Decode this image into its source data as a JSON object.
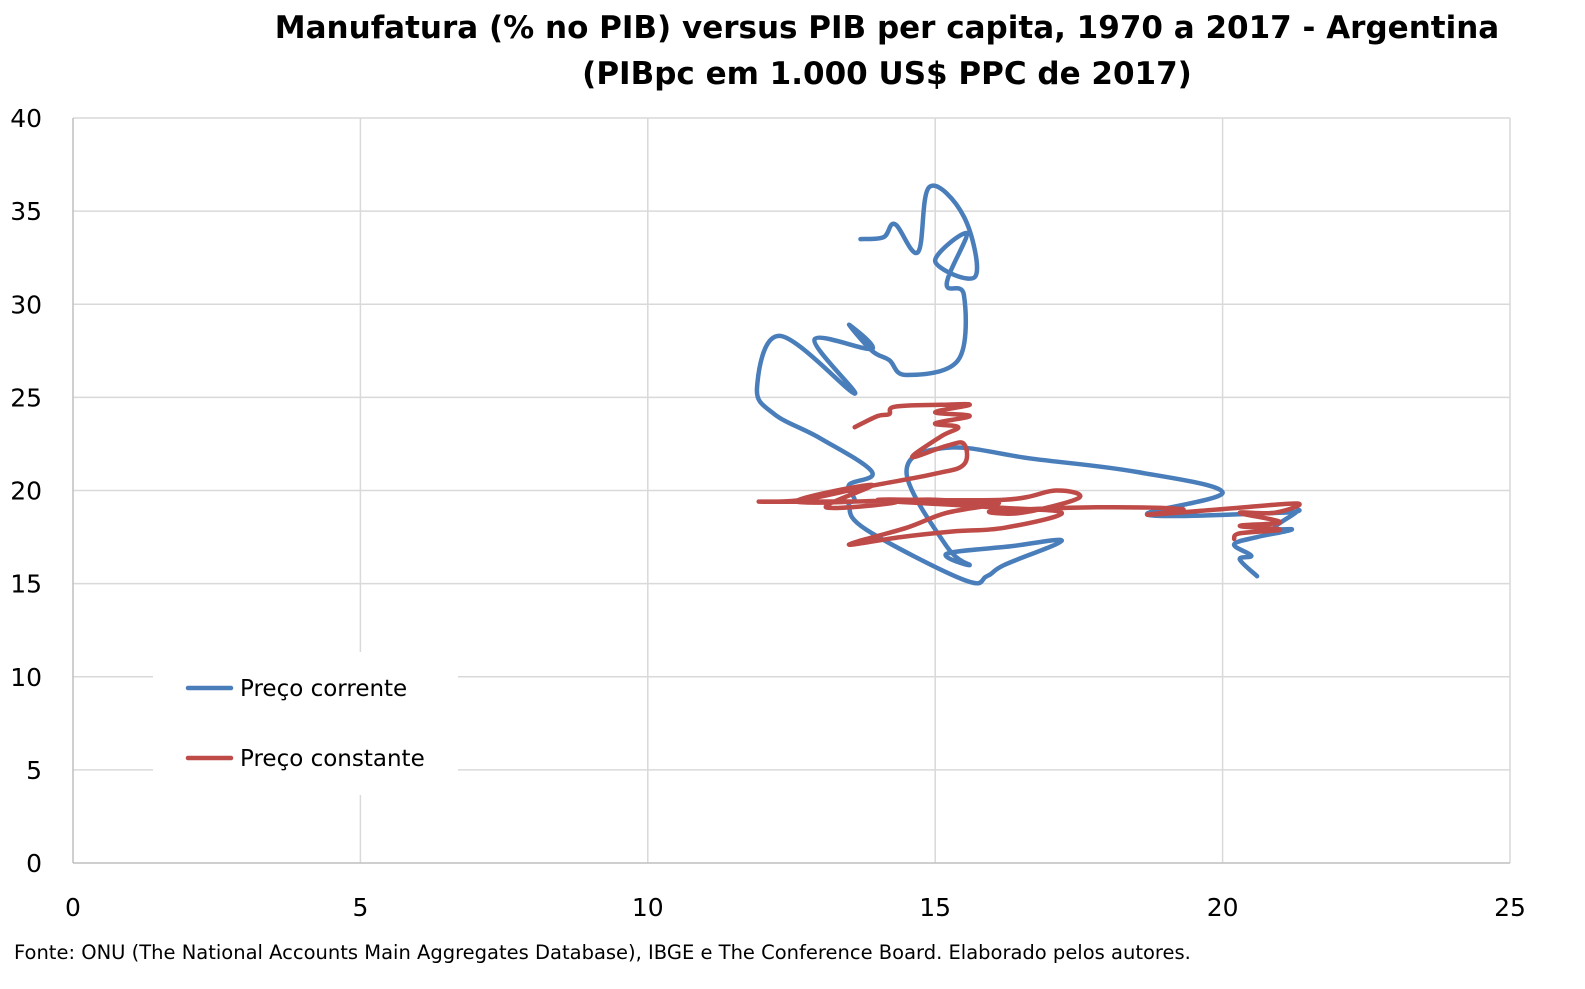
{
  "chart_data": {
    "type": "line",
    "title_lines": [
      "Manufatura (% no PIB) versus PIB per capita, 1970 a 2017 - Argentina",
      "(PIBpc em 1.000 US$ PPC de 2017)"
    ],
    "xlabel": "",
    "ylabel": "",
    "xlim": [
      0,
      25
    ],
    "ylim": [
      0,
      40
    ],
    "x_ticks": [
      "0",
      "5",
      "10",
      "15",
      "20",
      "25"
    ],
    "y_ticks": [
      "0",
      "5",
      "10",
      "15",
      "20",
      "25",
      "30",
      "35",
      "40"
    ],
    "grid": true,
    "legend_position": "left, bottom half of plot",
    "source": "Fonte: ONU (The National Accounts Main Aggregates Database), IBGE e The Conference Board. Elaborado pelos autores.",
    "series": [
      {
        "name": "Preço corrente",
        "color": "#4a7ebb",
        "points": [
          [
            13.7,
            33.5
          ],
          [
            14.1,
            33.6
          ],
          [
            14.3,
            34.3
          ],
          [
            14.7,
            32.8
          ],
          [
            14.9,
            36.3
          ],
          [
            15.5,
            34.7
          ],
          [
            15.7,
            31.5
          ],
          [
            15.0,
            32.3
          ],
          [
            15.55,
            33.8
          ],
          [
            15.2,
            31.1
          ],
          [
            15.5,
            30.5
          ],
          [
            15.4,
            27.0
          ],
          [
            14.5,
            26.2
          ],
          [
            14.2,
            27.0
          ],
          [
            13.9,
            27.5
          ],
          [
            13.5,
            28.9
          ],
          [
            13.9,
            27.6
          ],
          [
            12.9,
            28.1
          ],
          [
            13.6,
            25.2
          ],
          [
            12.3,
            28.3
          ],
          [
            11.9,
            25.5
          ],
          [
            12.2,
            24.1
          ],
          [
            13.0,
            22.8
          ],
          [
            13.9,
            21.0
          ],
          [
            13.5,
            20.3
          ],
          [
            13.6,
            19.5
          ],
          [
            13.5,
            19.2
          ],
          [
            13.8,
            17.9
          ],
          [
            15.5,
            15.2
          ],
          [
            15.9,
            15.4
          ],
          [
            16.2,
            16.0
          ],
          [
            17.2,
            17.3
          ],
          [
            16.3,
            17.0
          ],
          [
            15.2,
            16.6
          ],
          [
            15.6,
            16.0
          ],
          [
            15.2,
            17.0
          ],
          [
            14.5,
            21.0
          ],
          [
            15.2,
            22.3
          ],
          [
            16.7,
            21.7
          ],
          [
            18.5,
            21.0
          ],
          [
            20.0,
            19.9
          ],
          [
            18.7,
            18.7
          ],
          [
            21.0,
            18.8
          ],
          [
            21.3,
            18.9
          ],
          [
            20.9,
            18.0
          ],
          [
            21.2,
            17.9
          ],
          [
            20.6,
            17.5
          ],
          [
            20.2,
            17.1
          ],
          [
            20.5,
            16.5
          ],
          [
            20.3,
            16.3
          ],
          [
            20.6,
            15.4
          ]
        ]
      },
      {
        "name": "Preço constante",
        "color": "#be4b48",
        "points": [
          [
            13.6,
            23.4
          ],
          [
            14.0,
            24.0
          ],
          [
            14.2,
            24.1
          ],
          [
            14.3,
            24.5
          ],
          [
            15.1,
            24.6
          ],
          [
            15.6,
            24.6
          ],
          [
            15.0,
            24.2
          ],
          [
            15.6,
            24.0
          ],
          [
            15.0,
            23.6
          ],
          [
            15.4,
            23.4
          ],
          [
            15.1,
            22.9
          ],
          [
            14.6,
            21.8
          ],
          [
            15.2,
            22.4
          ],
          [
            15.5,
            22.5
          ],
          [
            15.5,
            21.4
          ],
          [
            15.0,
            20.9
          ],
          [
            13.8,
            20.2
          ],
          [
            12.7,
            19.5
          ],
          [
            12.0,
            19.4
          ],
          [
            14.3,
            19.4
          ],
          [
            13.1,
            19.1
          ],
          [
            13.9,
            20.3
          ],
          [
            12.6,
            19.4
          ],
          [
            14.6,
            19.5
          ],
          [
            15.0,
            19.5
          ],
          [
            15.6,
            19.4
          ],
          [
            16.1,
            19.3
          ],
          [
            15.2,
            18.8
          ],
          [
            14.5,
            18.0
          ],
          [
            13.5,
            17.1
          ],
          [
            14.4,
            17.5
          ],
          [
            15.3,
            17.8
          ],
          [
            16.2,
            18.0
          ],
          [
            17.2,
            18.8
          ],
          [
            16.0,
            19.1
          ],
          [
            14.0,
            19.5
          ],
          [
            16.2,
            19.5
          ],
          [
            17.1,
            20.0
          ],
          [
            17.5,
            19.6
          ],
          [
            16.5,
            18.8
          ],
          [
            16.0,
            18.9
          ],
          [
            17.8,
            19.1
          ],
          [
            19.3,
            19.0
          ],
          [
            18.7,
            18.7
          ],
          [
            20.0,
            19.0
          ],
          [
            21.3,
            19.3
          ],
          [
            20.9,
            18.8
          ],
          [
            20.3,
            18.8
          ],
          [
            21.0,
            18.3
          ],
          [
            20.3,
            18.1
          ],
          [
            21.0,
            17.9
          ],
          [
            20.3,
            17.7
          ],
          [
            20.2,
            17.4
          ]
        ]
      }
    ]
  }
}
